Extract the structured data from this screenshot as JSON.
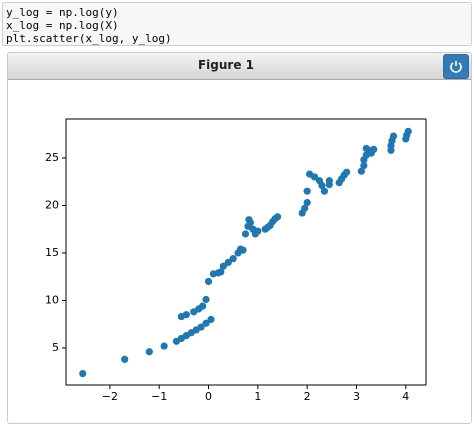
{
  "code": {
    "lines": [
      "y_log = np.log(y)",
      "x_log = np.log(X)",
      "plt.scatter(x_log, y_log)"
    ]
  },
  "figure": {
    "title": "Figure 1"
  },
  "chart_data": {
    "type": "scatter",
    "color": "#1f77b4",
    "x": [
      -2.55,
      -1.7,
      -1.2,
      -0.9,
      -0.65,
      -0.55,
      -0.45,
      -0.35,
      -0.25,
      -0.15,
      -0.05,
      0.05,
      -0.55,
      -0.45,
      -0.3,
      -0.2,
      -0.12,
      -0.05,
      0.0,
      0.1,
      0.2,
      0.25,
      0.3,
      0.4,
      0.5,
      0.6,
      0.65,
      0.7,
      0.75,
      0.8,
      0.82,
      0.85,
      0.9,
      0.95,
      1.0,
      1.15,
      1.2,
      1.25,
      1.3,
      1.35,
      1.4,
      1.9,
      1.95,
      2.0,
      2.0,
      2.05,
      2.15,
      2.25,
      2.3,
      2.35,
      2.45,
      2.45,
      2.65,
      2.7,
      2.75,
      2.8,
      3.1,
      3.15,
      3.15,
      3.2,
      3.2,
      3.25,
      3.3,
      3.35,
      3.7,
      3.7,
      3.72,
      3.75,
      4.0,
      4.02,
      4.05
    ],
    "values": [
      2.3,
      3.8,
      4.6,
      5.2,
      5.7,
      6.0,
      6.3,
      6.6,
      6.9,
      7.2,
      7.6,
      8.0,
      8.3,
      8.5,
      8.8,
      9.1,
      9.4,
      10.1,
      12.0,
      12.8,
      12.9,
      13.0,
      13.6,
      14.0,
      14.4,
      15.0,
      15.4,
      15.3,
      17.0,
      17.8,
      18.5,
      18.2,
      17.5,
      17.0,
      17.3,
      17.5,
      17.7,
      17.9,
      18.3,
      18.6,
      18.8,
      19.2,
      19.7,
      20.3,
      21.5,
      23.3,
      23.0,
      22.6,
      22.1,
      21.5,
      22.2,
      22.6,
      22.4,
      22.8,
      23.2,
      23.5,
      23.6,
      24.2,
      24.8,
      25.3,
      26.0,
      25.8,
      25.5,
      25.9,
      25.8,
      26.3,
      26.8,
      27.3,
      27.0,
      27.4,
      27.8
    ],
    "xlim": [
      -2.89,
      4.41
    ],
    "ylim": [
      1.1,
      29.1
    ],
    "xticks": [
      {
        "value": -2,
        "label": "−2"
      },
      {
        "value": -1,
        "label": "−1"
      },
      0,
      1,
      2,
      3,
      4
    ],
    "yticks": [
      5,
      10,
      15,
      20,
      25
    ]
  }
}
